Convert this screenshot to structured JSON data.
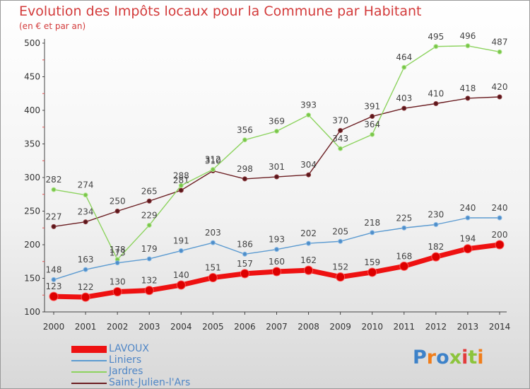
{
  "title": "Evolution des Impôts locaux pour la Commune par Habitant",
  "subtitle": "(en € et par an)",
  "brand": {
    "text": "Proxiti",
    "colors": [
      "#3d82c9",
      "#f07d1a",
      "#3d82c9",
      "#8cc43c",
      "#e23c3c",
      "#8cc43c",
      "#f07d1a"
    ]
  },
  "chart_data": {
    "type": "line",
    "x": [
      2000,
      2001,
      2002,
      2003,
      2004,
      2005,
      2006,
      2007,
      2008,
      2009,
      2010,
      2011,
      2012,
      2013,
      2014
    ],
    "ylim": [
      100,
      500
    ],
    "yticks": [
      100,
      150,
      200,
      250,
      300,
      350,
      400,
      450,
      500
    ],
    "grid": false,
    "legend_position": "bottom-left",
    "series": [
      {
        "name": "LAVOUX",
        "color": "#ee1111",
        "values": [
          123,
          122,
          130,
          132,
          140,
          151,
          157,
          160,
          162,
          152,
          159,
          168,
          182,
          194,
          200
        ]
      },
      {
        "name": "Liniers",
        "color": "#5c9bd1",
        "values": [
          148,
          163,
          173,
          179,
          191,
          203,
          186,
          193,
          202,
          205,
          218,
          225,
          230,
          240,
          240
        ]
      },
      {
        "name": "Jardres",
        "color": "#8dd35f",
        "values": [
          282,
          274,
          178,
          229,
          288,
          312,
          356,
          369,
          393,
          343,
          364,
          464,
          495,
          496,
          487
        ]
      },
      {
        "name": "Saint-Julien-l'Ars",
        "color": "#6b1e22",
        "values": [
          227,
          234,
          250,
          265,
          281,
          310,
          298,
          301,
          304,
          370,
          391,
          403,
          410,
          418,
          420
        ]
      }
    ]
  }
}
